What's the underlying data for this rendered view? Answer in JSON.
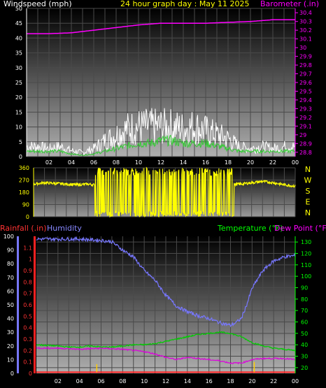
{
  "colors": {
    "background": "#000000",
    "grid": "#4a4a4a",
    "wind_speed": "#ffffff",
    "wind_avg": "#33cc33",
    "barometer": "#ff00ff",
    "direction": "#ffff00",
    "humidity": "#7777ff",
    "temperature": "#00cc00",
    "dewpoint": "#dd00dd",
    "rainfall": "#ff2222",
    "rain_tick": "#ffcc00",
    "wind_label": "#ffffff",
    "title": "#ffff00",
    "rain_label": "#ff3333",
    "humidity_label": "#8888ff",
    "temp_label": "#00ff00",
    "dew_label": "#ff00ff"
  },
  "chart_data": [
    {
      "type": "line",
      "title": "24 hour graph day : May 11 2025",
      "left_label": "Windspeed (mph)",
      "right_label": "Barometer (.in)",
      "x_ticks": [
        "02",
        "04",
        "06",
        "08",
        "10",
        "12",
        "14",
        "16",
        "18",
        "20",
        "22",
        "00"
      ],
      "y_left_ticks": [
        "0",
        "5",
        "10",
        "15",
        "20",
        "25",
        "30",
        "35",
        "40",
        "45",
        "50"
      ],
      "y_left_range": [
        0,
        50
      ],
      "y_right_ticks": [
        "28.8",
        "28.9",
        "29",
        "29.1",
        "29.2",
        "29.3",
        "29.4",
        "29.5",
        "29.6",
        "29.7",
        "29.8",
        "29.9",
        "30",
        "30.1",
        "30.2",
        "30.3",
        "30.4"
      ],
      "y_right_range": [
        28.75,
        30.45
      ],
      "x_range_hours": [
        0,
        24
      ],
      "series": [
        {
          "key": "barometer",
          "axis": "right",
          "x": [
            0,
            2,
            4,
            6,
            8,
            10,
            12,
            14,
            16,
            18,
            20,
            22,
            24
          ],
          "values": [
            30.16,
            30.16,
            30.17,
            30.2,
            30.23,
            30.26,
            30.28,
            30.28,
            30.28,
            30.29,
            30.3,
            30.32,
            30.32
          ]
        },
        {
          "key": "wind_gust",
          "axis": "left",
          "x": [
            0,
            1,
            2,
            3,
            4,
            5,
            6,
            7,
            8,
            9,
            10,
            11,
            12,
            13,
            14,
            15,
            16,
            17,
            18,
            19,
            20,
            21,
            22,
            23,
            24
          ],
          "values": [
            5,
            5,
            4,
            5,
            3,
            2,
            4,
            8,
            11,
            14,
            15,
            15,
            15,
            15,
            14,
            15,
            13,
            11,
            9,
            5,
            4,
            5,
            4,
            5,
            5
          ]
        },
        {
          "key": "wind_avg",
          "axis": "left",
          "x": [
            0,
            1,
            2,
            3,
            4,
            5,
            6,
            7,
            8,
            9,
            10,
            11,
            12,
            13,
            14,
            15,
            16,
            17,
            18,
            19,
            20,
            21,
            22,
            23,
            24
          ],
          "values": [
            2,
            2,
            2,
            2,
            1,
            0.5,
            1,
            2,
            3,
            4,
            5,
            5,
            6,
            6,
            5,
            5,
            5,
            4,
            3,
            2,
            2,
            2,
            2,
            2,
            2
          ]
        }
      ]
    },
    {
      "type": "line",
      "title": "",
      "y_ticks": [
        "0",
        "90",
        "180",
        "270",
        "360"
      ],
      "y_range": [
        0,
        360
      ],
      "side_labels": [
        "N",
        "W",
        "S",
        "E",
        "N"
      ],
      "x_range_hours": [
        0,
        24
      ],
      "series": [
        {
          "key": "wind_direction",
          "x": [
            0,
            1,
            2,
            3,
            4,
            5,
            6,
            7,
            8,
            9,
            10,
            11,
            12,
            13,
            14,
            15,
            16,
            17,
            18,
            19,
            20,
            21,
            22,
            23,
            24
          ],
          "values": [
            240,
            250,
            245,
            240,
            235,
            240,
            230,
            235,
            240,
            230,
            235,
            240,
            230,
            235,
            240,
            235,
            230,
            240,
            235,
            240,
            250,
            260,
            250,
            235,
            225
          ]
        }
      ]
    },
    {
      "type": "line",
      "left_label_1": "Rainfall (.in)",
      "left_label_2": "Humidity",
      "right_label": "Temperature (°F)",
      "right_label_2": "Dew Point (°F)",
      "x_ticks": [
        "02",
        "04",
        "06",
        "08",
        "10",
        "12",
        "14",
        "16",
        "18",
        "20",
        "22",
        "00"
      ],
      "humidity_ticks": [
        "0",
        "10",
        "20",
        "30",
        "40",
        "50",
        "60",
        "70",
        "80",
        "90",
        "100"
      ],
      "humidity_range": [
        0,
        100
      ],
      "rain_ticks": [
        "0",
        "0.1",
        "0.2",
        "0.3",
        "0.4",
        "0.5",
        "0.6",
        "0.7",
        "0.8",
        "0.9",
        "1",
        "1.1"
      ],
      "rain_range": [
        0,
        1.2
      ],
      "temp_ticks": [
        "20",
        "30",
        "40",
        "50",
        "60",
        "70",
        "80",
        "90",
        "100",
        "110",
        "120",
        "130"
      ],
      "temp_range": [
        15,
        135
      ],
      "x_range_hours": [
        0,
        24
      ],
      "series": [
        {
          "key": "humidity",
          "axis": "humidity",
          "x": [
            0,
            2,
            4,
            6,
            7,
            8,
            9,
            10,
            11,
            12,
            13,
            14,
            15,
            16,
            17,
            18,
            18.5,
            19,
            19.5,
            20,
            21,
            22,
            23,
            24
          ],
          "values": [
            98,
            98,
            98,
            97,
            96,
            90,
            85,
            75,
            68,
            57,
            49,
            45,
            42,
            40,
            37,
            35,
            37,
            40,
            50,
            62,
            75,
            82,
            85,
            86
          ]
        },
        {
          "key": "temperature",
          "axis": "temp",
          "x": [
            0,
            2,
            3,
            4,
            5,
            6,
            7,
            8,
            9,
            10,
            11,
            12,
            13,
            14,
            15,
            16,
            17,
            18,
            19,
            20,
            21,
            22,
            23,
            24
          ],
          "values": [
            40,
            39,
            38,
            38,
            39,
            38,
            38,
            39,
            40,
            40,
            41,
            43,
            45,
            47,
            49,
            50,
            51,
            50,
            47,
            42,
            39,
            37,
            36,
            35
          ]
        },
        {
          "key": "dewpoint",
          "axis": "temp",
          "x": [
            0,
            2,
            4,
            6,
            8,
            10,
            11,
            12,
            13,
            14,
            15,
            16,
            17,
            18,
            19,
            20,
            21,
            22,
            23,
            24
          ],
          "values": [
            37,
            37,
            36,
            37,
            36,
            34,
            32,
            29,
            27,
            29,
            28,
            27,
            26,
            24,
            24,
            27,
            28,
            28,
            28,
            27
          ]
        },
        {
          "key": "rainfall",
          "axis": "rain",
          "x": [
            0,
            24
          ],
          "values": [
            0.01,
            0.01
          ]
        }
      ],
      "rain_events": [
        {
          "x": 5.6,
          "value": 0.08
        },
        {
          "x": 20.2,
          "value": 0.1
        }
      ]
    }
  ]
}
